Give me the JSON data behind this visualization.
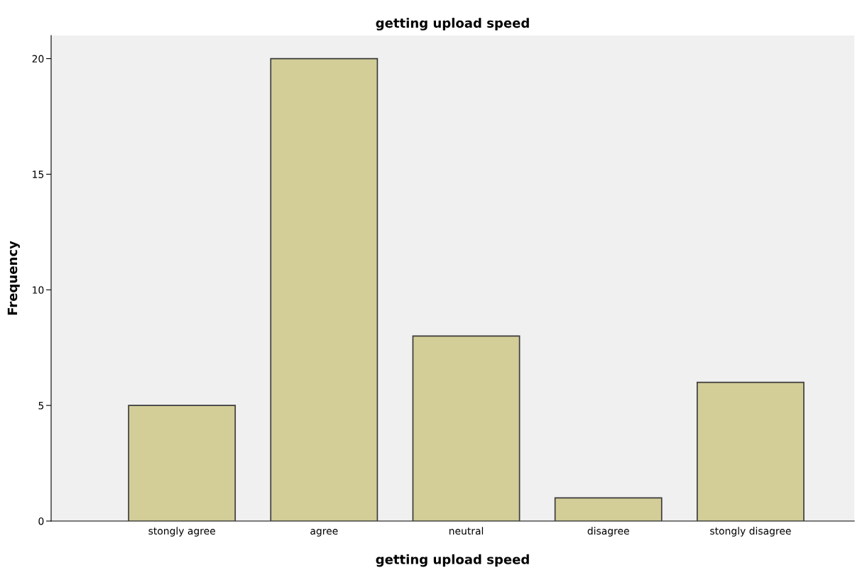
{
  "chart_data": {
    "type": "bar",
    "title": "getting upload speed",
    "xlabel": "getting upload speed",
    "ylabel": "Frequency",
    "categories": [
      "stongly agree",
      "agree",
      "neutral",
      "disagree",
      "stongly disagree"
    ],
    "values": [
      5,
      20,
      8,
      1,
      6
    ],
    "color": "#d3ce98",
    "ylim": [
      0,
      21
    ],
    "yticks": [
      0,
      5,
      10,
      15,
      20
    ],
    "grid": false
  }
}
